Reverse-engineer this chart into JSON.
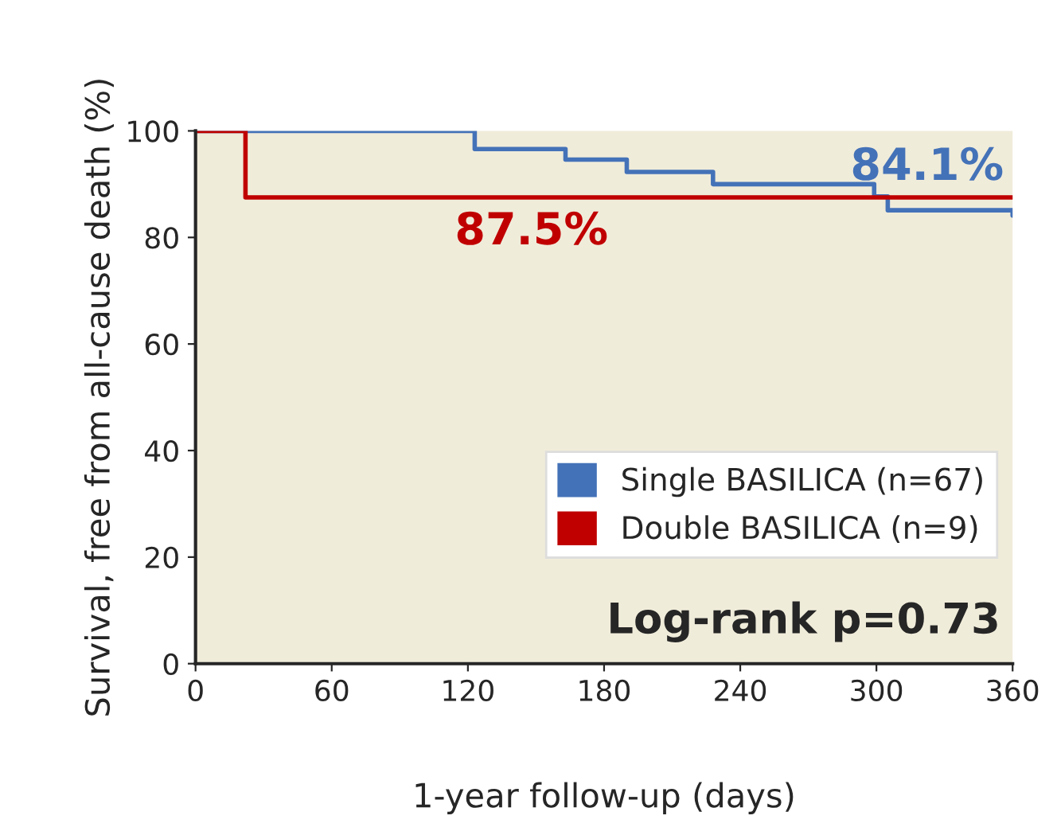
{
  "chart_data": {
    "type": "step",
    "xlabel": "1-year follow-up (days)",
    "ylabel": "Survival, free from all-cause death (%)",
    "series": [
      {
        "name": "Single BASILICA (n=67)",
        "color": "#4472b8",
        "x": [
          0,
          123,
          163,
          190,
          228,
          299,
          305,
          360
        ],
        "values": [
          100,
          96.6,
          94.6,
          92.3,
          90.0,
          87.7,
          85.1,
          84.1
        ]
      },
      {
        "name": "Double BASILICA (n=9)",
        "color": "#c00000",
        "x": [
          0,
          22,
          360
        ],
        "values": [
          100,
          87.5,
          87.5
        ]
      }
    ],
    "annotations": [
      {
        "text": "84.1%",
        "x": 360,
        "y": 84.1
      },
      {
        "text": "87.5%",
        "x": 148,
        "y": 87.5
      },
      "Log-rank p=0.73"
    ],
    "xlim": [
      0,
      360
    ],
    "ylim": [
      0,
      100
    ],
    "xticks": [
      0,
      60,
      120,
      180,
      240,
      300,
      360
    ],
    "yticks": [
      0,
      20,
      40,
      60,
      80,
      100
    ],
    "grid": false,
    "legend": "bottom right"
  }
}
